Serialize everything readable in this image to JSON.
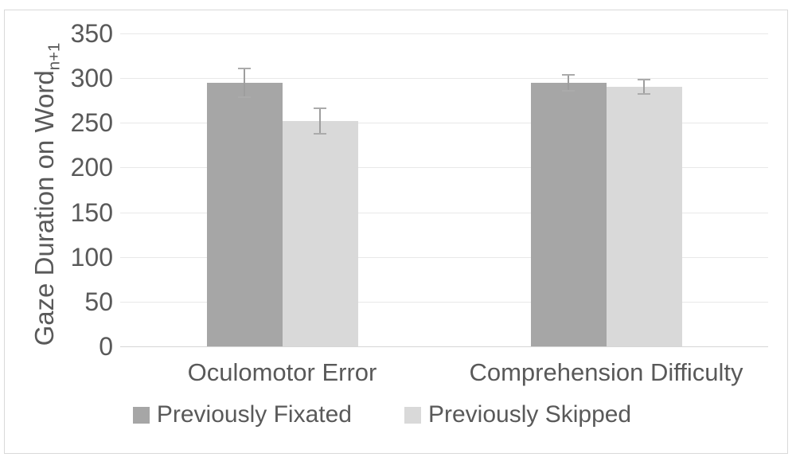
{
  "chart_data": {
    "type": "bar",
    "title": "",
    "categories": [
      "Oculomotor Error",
      "Comprehension Difficulty"
    ],
    "series": [
      {
        "name": "Previously Fixated",
        "color": "#a6a6a6",
        "values": [
          295,
          295
        ],
        "errors": [
          17,
          10
        ]
      },
      {
        "name": "Previously Skipped",
        "color": "#d9d9d9",
        "values": [
          252,
          290
        ],
        "errors": [
          15,
          9
        ]
      }
    ],
    "xlabel": "",
    "ylabel": "Gaze Duration on Word",
    "ylabel_subscript": "n+1",
    "ylim": [
      0,
      350
    ],
    "yticks": [
      0,
      50,
      100,
      150,
      200,
      250,
      300,
      350
    ],
    "grid": true,
    "legend_position": "bottom",
    "error_bar_color": "#9e9e9e",
    "text_color": "#595959",
    "gridline_color": "#e8e8e8",
    "frame_border_color": "#d9d9d9"
  }
}
